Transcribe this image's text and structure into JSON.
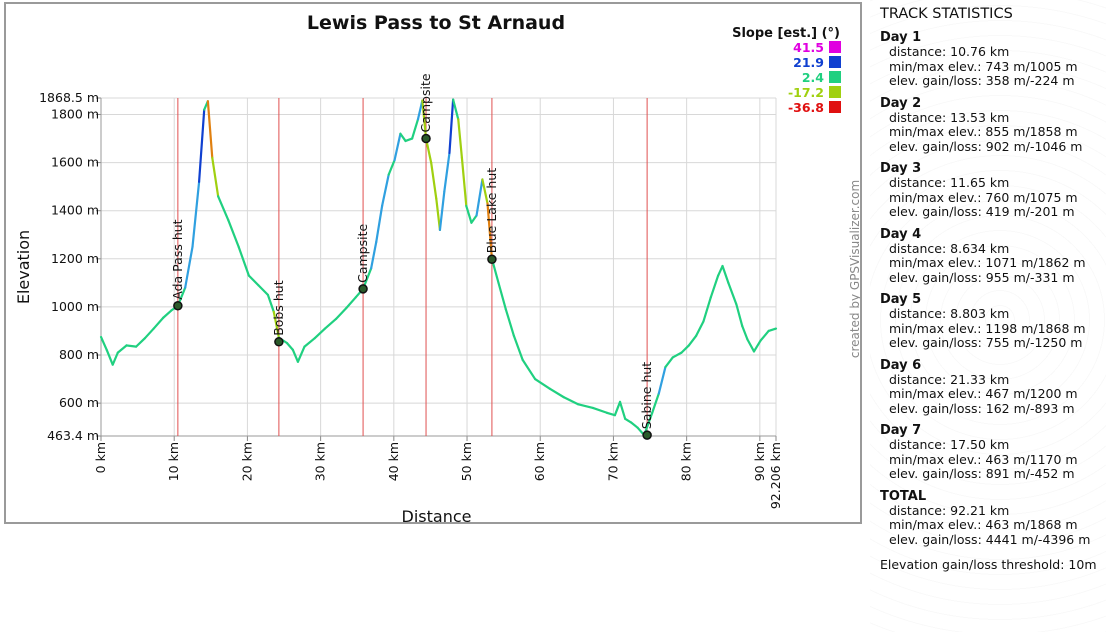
{
  "chart_data": {
    "type": "line",
    "title": "Lewis Pass to St Arnaud",
    "xlabel": "Distance",
    "ylabel": "Elevation",
    "xlim": [
      0,
      92.206
    ],
    "ylim": [
      463.4,
      1868.5
    ],
    "x_ticks": [
      {
        "value": 0,
        "label": "0 km"
      },
      {
        "value": 10,
        "label": "10 km"
      },
      {
        "value": 20,
        "label": "20 km"
      },
      {
        "value": 30,
        "label": "30 km"
      },
      {
        "value": 40,
        "label": "40 km"
      },
      {
        "value": 50,
        "label": "50 km"
      },
      {
        "value": 60,
        "label": "60 km"
      },
      {
        "value": 70,
        "label": "70 km"
      },
      {
        "value": 80,
        "label": "80 km"
      },
      {
        "value": 90,
        "label": "90 km"
      },
      {
        "value": 92.206,
        "label": "92.206 km"
      }
    ],
    "y_ticks": [
      {
        "value": 463.4,
        "label": "463.4 m"
      },
      {
        "value": 600,
        "label": "600 m"
      },
      {
        "value": 800,
        "label": "800 m"
      },
      {
        "value": 1000,
        "label": "1000 m"
      },
      {
        "value": 1200,
        "label": "1200 m"
      },
      {
        "value": 1400,
        "label": "1400 m"
      },
      {
        "value": 1600,
        "label": "1600 m"
      },
      {
        "value": 1800,
        "label": "1800 m"
      },
      {
        "value": 1868.5,
        "label": "1868.5 m"
      }
    ],
    "grid": true,
    "legend": {
      "title": "Slope [est.] (°)",
      "placement": "top-right",
      "entries": [
        {
          "label": "41.5",
          "color": "#e000e0"
        },
        {
          "label": "21.9",
          "color": "#1040d0"
        },
        {
          "label": "2.4",
          "color": "#20d080"
        },
        {
          "label": "-17.2",
          "color": "#a0d010"
        },
        {
          "label": "-36.8",
          "color": "#e01010"
        }
      ]
    },
    "series": [
      {
        "points": [
          [
            0,
            875
          ],
          [
            0.8,
            820
          ],
          [
            1.6,
            760
          ],
          [
            2.3,
            810
          ],
          [
            3.5,
            840
          ],
          [
            4.8,
            835
          ],
          [
            6,
            870
          ],
          [
            7.2,
            910
          ],
          [
            8.5,
            955
          ],
          [
            9.6,
            985
          ],
          [
            10.5,
            1005
          ],
          [
            11.5,
            1080
          ],
          [
            12.5,
            1250
          ],
          [
            13.4,
            1520
          ],
          [
            14.1,
            1820
          ],
          [
            14.6,
            1855
          ],
          [
            15.2,
            1620
          ],
          [
            16,
            1460
          ],
          [
            17.4,
            1360
          ],
          [
            18.8,
            1250
          ],
          [
            20.2,
            1130
          ],
          [
            21.5,
            1090
          ],
          [
            22.8,
            1050
          ],
          [
            23.6,
            980
          ],
          [
            24.3,
            872
          ],
          [
            25.4,
            850
          ],
          [
            26.2,
            822
          ],
          [
            26.9,
            772
          ],
          [
            27.8,
            835
          ],
          [
            29.2,
            870
          ],
          [
            30.6,
            910
          ],
          [
            32.1,
            950
          ],
          [
            33.5,
            995
          ],
          [
            34.8,
            1040
          ],
          [
            35.8,
            1075
          ],
          [
            36.9,
            1160
          ],
          [
            37.6,
            1270
          ],
          [
            38.4,
            1420
          ],
          [
            39.3,
            1550
          ],
          [
            40.1,
            1610
          ],
          [
            40.9,
            1720
          ],
          [
            41.6,
            1690
          ],
          [
            42.5,
            1700
          ],
          [
            43.3,
            1780
          ],
          [
            43.9,
            1858
          ],
          [
            44.4,
            1700
          ],
          [
            45.1,
            1600
          ],
          [
            45.8,
            1450
          ],
          [
            46.3,
            1320
          ],
          [
            46.9,
            1480
          ],
          [
            47.6,
            1640
          ],
          [
            48.1,
            1862
          ],
          [
            48.8,
            1780
          ],
          [
            49.3,
            1620
          ],
          [
            49.9,
            1420
          ],
          [
            50.6,
            1350
          ],
          [
            51.3,
            1380
          ],
          [
            52.1,
            1530
          ],
          [
            52.8,
            1430
          ],
          [
            53.4,
            1200
          ],
          [
            54.3,
            1100
          ],
          [
            55.3,
            990
          ],
          [
            56.4,
            880
          ],
          [
            57.6,
            780
          ],
          [
            59.3,
            700
          ],
          [
            61.3,
            660
          ],
          [
            63.2,
            625
          ],
          [
            65.2,
            595
          ],
          [
            67.2,
            580
          ],
          [
            69.1,
            560
          ],
          [
            70.2,
            550
          ],
          [
            70.9,
            605
          ],
          [
            71.6,
            535
          ],
          [
            72.4,
            520
          ],
          [
            73.3,
            498
          ],
          [
            74.2,
            467
          ],
          [
            75.3,
            560
          ],
          [
            76.2,
            640
          ],
          [
            77.1,
            750
          ],
          [
            78.1,
            790
          ],
          [
            79.3,
            810
          ],
          [
            80.3,
            840
          ],
          [
            81.3,
            880
          ],
          [
            82.3,
            940
          ],
          [
            83.3,
            1040
          ],
          [
            84.3,
            1130
          ],
          [
            84.9,
            1170
          ],
          [
            85.7,
            1100
          ],
          [
            86.8,
            1010
          ],
          [
            87.6,
            920
          ],
          [
            88.3,
            865
          ],
          [
            89.2,
            815
          ],
          [
            90.1,
            860
          ],
          [
            91.2,
            900
          ],
          [
            92.206,
            910
          ]
        ]
      }
    ],
    "waypoints": [
      {
        "x": 10.5,
        "label": "Ada Pass hut",
        "elev": 1005
      },
      {
        "x": 24.3,
        "label": "Bobs hut",
        "elev": 855
      },
      {
        "x": 35.8,
        "label": "Campsite",
        "elev": 1075
      },
      {
        "x": 44.4,
        "label": "Campsite",
        "elev": 1700
      },
      {
        "x": 53.4,
        "label": "Blue Lake hut",
        "elev": 1198
      },
      {
        "x": 74.6,
        "label": "Sabine hut",
        "elev": 467
      }
    ],
    "credit": "created by GPSVisualizer.com"
  },
  "stats": {
    "title": "TRACK STATISTICS",
    "days": [
      {
        "name": "Day 1",
        "distance": "distance: 10.76 km",
        "minmax": "min/max elev.: 743 m/1005 m",
        "gainloss": "elev. gain/loss: 358 m/-224 m"
      },
      {
        "name": "Day 2",
        "distance": "distance: 13.53 km",
        "minmax": "min/max elev.: 855 m/1858 m",
        "gainloss": "elev. gain/loss: 902 m/-1046 m"
      },
      {
        "name": "Day 3",
        "distance": "distance: 11.65 km",
        "minmax": "min/max elev.: 760 m/1075 m",
        "gainloss": "elev. gain/loss: 419 m/-201 m"
      },
      {
        "name": "Day 4",
        "distance": "distance: 8.634 km",
        "minmax": "min/max elev.: 1071 m/1862 m",
        "gainloss": "elev. gain/loss: 955 m/-331 m"
      },
      {
        "name": "Day 5",
        "distance": "distance: 8.803 km",
        "minmax": "min/max elev.: 1198 m/1868 m",
        "gainloss": "elev. gain/loss: 755 m/-1250 m"
      },
      {
        "name": "Day 6",
        "distance": "distance: 21.33 km",
        "minmax": "min/max elev.: 467 m/1200 m",
        "gainloss": "elev. gain/loss: 162 m/-893 m"
      },
      {
        "name": "Day 7",
        "distance": "distance: 17.50 km",
        "minmax": "min/max elev.: 463 m/1170 m",
        "gainloss": "elev. gain/loss: 891 m/-452 m"
      },
      {
        "name": "TOTAL",
        "distance": "distance: 92.21 km",
        "minmax": "min/max elev.: 463 m/1868 m",
        "gainloss": "elev. gain/loss: 4441 m/-4396 m"
      }
    ],
    "threshold": "Elevation gain/loss threshold: 10m"
  }
}
